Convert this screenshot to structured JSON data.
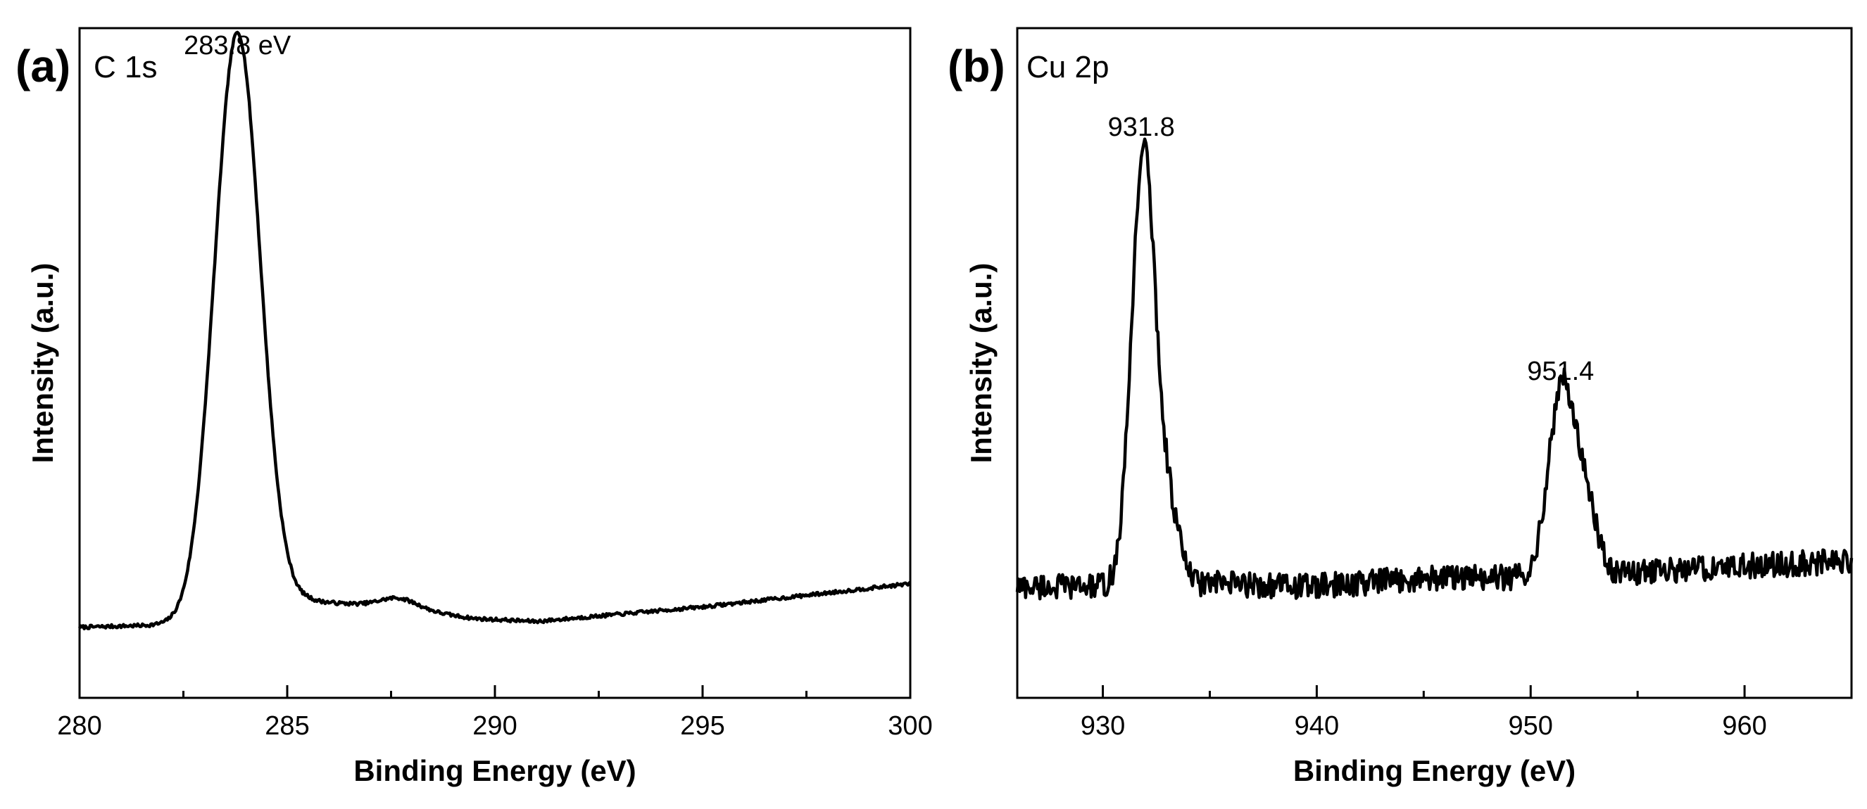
{
  "chart_data": [
    {
      "type": "line",
      "panel_label": "(a)",
      "title": "C 1s",
      "xlabel": "Binding Energy (eV)",
      "ylabel": "Intensity (a.u.)",
      "xlim": [
        280,
        300
      ],
      "ylim": [
        0,
        100
      ],
      "x_ticks": [
        280,
        285,
        290,
        295,
        300
      ],
      "x_tick_labels": [
        "280",
        "285",
        "290",
        "295",
        "300"
      ],
      "peaks": [
        {
          "x": 283.8,
          "amp": 100,
          "width": 0.55
        }
      ],
      "baseline": [
        [
          280,
          8.5
        ],
        [
          282.5,
          9.0
        ],
        [
          285.5,
          13.0
        ],
        [
          287.6,
          12.0
        ],
        [
          289.5,
          10.0
        ],
        [
          291,
          9.5
        ],
        [
          295,
          12.0
        ],
        [
          300,
          16.0
        ]
      ],
      "bumps": [
        {
          "x": 287.7,
          "amp": 1.6,
          "width": 0.45
        }
      ],
      "noise": 0.3,
      "annotations": [
        {
          "text": "283.8 eV",
          "x": 283.8,
          "y": 107
        }
      ]
    },
    {
      "type": "line",
      "panel_label": "(b)",
      "title": "Cu 2p",
      "xlabel": "Binding Energy (eV)",
      "ylabel": "Intensity (a.u.)",
      "xlim": [
        926,
        965
      ],
      "ylim": [
        0,
        100
      ],
      "x_ticks": [
        930,
        940,
        950,
        960
      ],
      "x_tick_labels": [
        "930",
        "940",
        "950",
        "960"
      ],
      "peaks": [
        {
          "x": 931.9,
          "amp": 75,
          "width": 0.55
        },
        {
          "x": 933.1,
          "amp": 12,
          "width": 0.5
        },
        {
          "x": 951.5,
          "amp": 33,
          "width": 0.65
        },
        {
          "x": 952.7,
          "amp": 9,
          "width": 0.5
        }
      ],
      "baseline": [
        [
          926,
          15.5
        ],
        [
          930,
          15.5
        ],
        [
          935,
          16.0
        ],
        [
          940,
          15.5
        ],
        [
          945,
          17.0
        ],
        [
          950,
          17.0
        ],
        [
          955,
          18.0
        ],
        [
          960,
          19.0
        ],
        [
          965,
          20.0
        ]
      ],
      "bumps": [],
      "noise": 2.2,
      "annotations": [
        {
          "text": "931.8",
          "x": 931.8,
          "y": 93
        },
        {
          "text": "951.4",
          "x": 951.4,
          "y": 51
        }
      ]
    }
  ]
}
